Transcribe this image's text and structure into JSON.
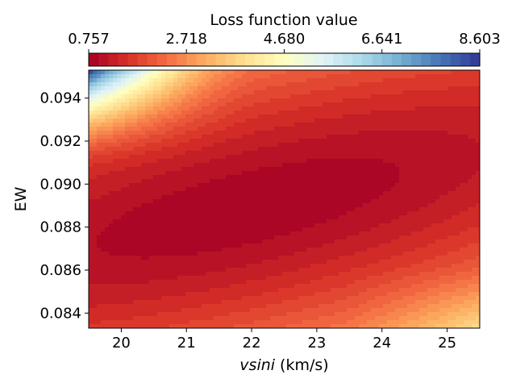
{
  "chart_data": {
    "type": "heatmap",
    "subtype": "filled-contour",
    "colormap": "RdYlBu",
    "xlabel": "vsini (km/s)",
    "xlabel_italic_part": "vsini",
    "xlabel_units": "(km/s)",
    "ylabel": "EW",
    "xlim": [
      19.5,
      25.5
    ],
    "ylim": [
      0.0833,
      0.0953
    ],
    "x_ticks": [
      20,
      21,
      22,
      23,
      24,
      25
    ],
    "x_tick_labels": [
      "20",
      "21",
      "22",
      "23",
      "24",
      "25"
    ],
    "y_ticks": [
      0.084,
      0.086,
      0.088,
      0.09,
      0.092,
      0.094
    ],
    "y_tick_labels": [
      "0.084",
      "0.086",
      "0.088",
      "0.090",
      "0.092",
      "0.094"
    ],
    "colorbar": {
      "label": "Loss function value",
      "location": "top",
      "range": [
        0.757,
        8.603
      ],
      "ticks": [
        0.757,
        2.718,
        4.68,
        6.641,
        8.603
      ],
      "tick_labels": [
        "0.757",
        "2.718",
        "4.680",
        "6.641",
        "8.603"
      ],
      "levels": 40
    },
    "minimum": {
      "vsini": 21.95,
      "EW": 0.0889,
      "loss": 0.757
    },
    "maximum_corner": {
      "vsini": 19.5,
      "EW": 0.0953,
      "loss": 8.603
    }
  }
}
